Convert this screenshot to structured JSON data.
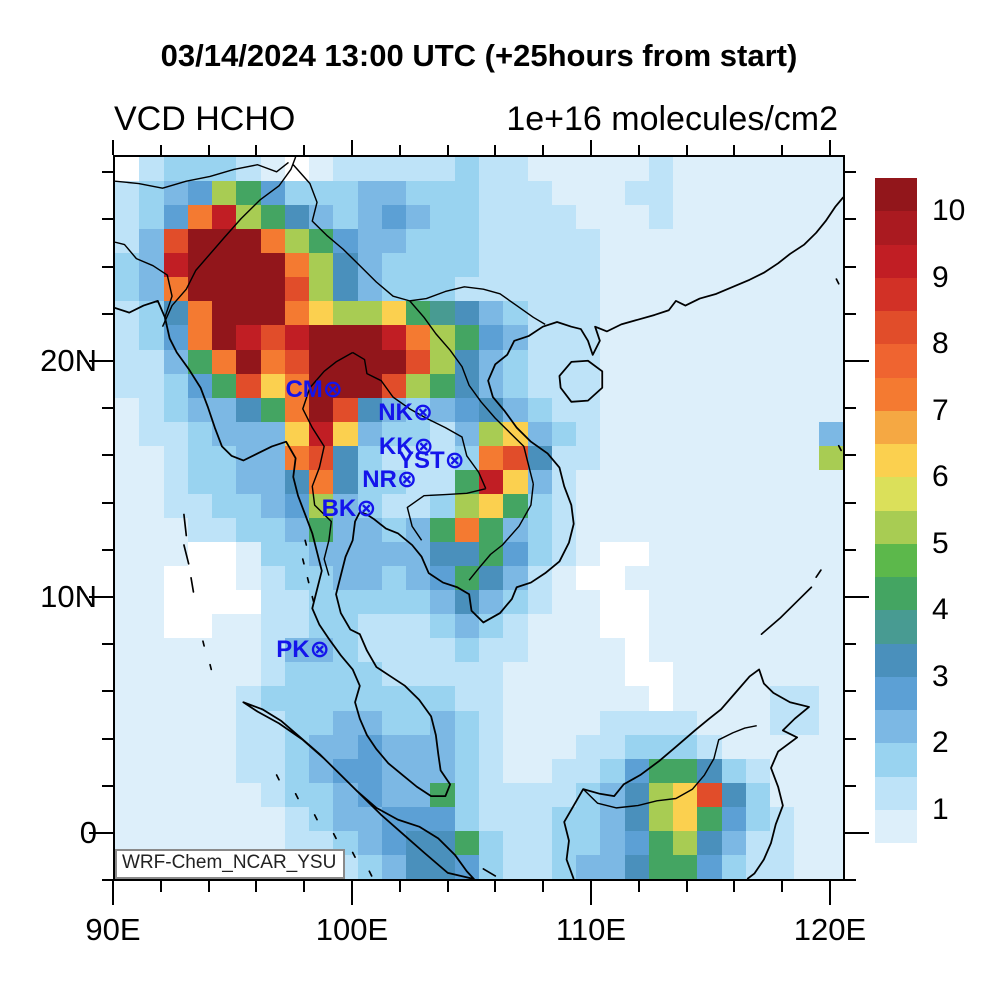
{
  "title": "03/14/2024 13:00 UTC (+25hours from start)",
  "plot": {
    "var_label": "VCD HCHO",
    "units_label": "1e+16 molecules/cm2",
    "watermark": "WRF-Chem_NCAR_YSU"
  },
  "axes": {
    "lon_min": 90,
    "lon_max": 120.63,
    "lat_min": -2.03,
    "lat_max": 28.73,
    "minor_step_deg": 2,
    "x_major": [
      {
        "lon": 90,
        "label": "90E"
      },
      {
        "lon": 100,
        "label": "100E"
      },
      {
        "lon": 110,
        "label": "110E"
      },
      {
        "lon": 120,
        "label": "120E"
      }
    ],
    "y_major": [
      {
        "lat": 20,
        "label": "20N"
      },
      {
        "lat": 10,
        "label": "10N"
      },
      {
        "lat": 0,
        "label": "0"
      }
    ]
  },
  "stations": [
    {
      "label": "CM",
      "marker": "⊗",
      "lon": 98.95,
      "lat": 18.85
    },
    {
      "label": "NK",
      "marker": "⊗",
      "lon": 102.72,
      "lat": 17.9
    },
    {
      "label": "KK",
      "marker": "⊗",
      "lon": 102.75,
      "lat": 16.43
    },
    {
      "label": "YST",
      "marker": "⊗",
      "lon": 104.05,
      "lat": 15.85
    },
    {
      "label": "NR",
      "marker": "⊗",
      "lon": 102.05,
      "lat": 15.05
    },
    {
      "label": "BK",
      "marker": "⊗",
      "lon": 100.35,
      "lat": 13.8
    },
    {
      "label": "PK",
      "marker": "⊗",
      "lon": 98.4,
      "lat": 7.85
    }
  ],
  "colorbar": {
    "tick_labels": [
      "10",
      "9",
      "8",
      "7",
      "6",
      "5",
      "4",
      "3",
      "2",
      "1"
    ],
    "tick_values": [
      10,
      9,
      8,
      7,
      6,
      5,
      4,
      3,
      2,
      1
    ],
    "vmin": 0.5,
    "vmax": 10.5
  },
  "chart_data": {
    "type": "heatmap",
    "title": "03/14/2024 13:00 UTC (+25hours from start)",
    "variable": "VCD HCHO",
    "units": "1e+16 molecules/cm2",
    "model_label": "WRF-Chem_NCAR_YSU",
    "lon_range": [
      90,
      120.63
    ],
    "lat_range": [
      -2.03,
      28.73
    ],
    "level_min": 0.5,
    "level_max": 10.5,
    "level_step": 0.5,
    "below_min_color": "#FFFFFF",
    "palette": [
      "#FFFFFF",
      "#DDEFFA",
      "#BEE3F8",
      "#99D3F0",
      "#7CB8E4",
      "#5CA0D5",
      "#4A90BC",
      "#489B92",
      "#44A562",
      "#5CB84B",
      "#A8CC53",
      "#DBE05A",
      "#FBD04F",
      "#F5A843",
      "#F47A31",
      "#EF6430",
      "#E14D2A",
      "#D23126",
      "#C11E24",
      "#AA1A20",
      "#92161B"
    ],
    "encoding": "0123456789abcdefghijk",
    "grid_note": "30x30 cells, rows north-to-south, cols west-to-east; char = palette/level index (0 = below 0.5, k = 10.0-10.5)",
    "grid_rows_north_to_south": [
      "023332101222223221111121111111",
      "2345a8533344333222111221111111",
      "235eia864345433222211121111111",
      "24gkkkea8544333222221111111111",
      "34ikkkkea643333222221111111111",
      "34ekkkkga643332222221111111111",
      "236ekkkecaac876432221111111111",
      "235ekigikkkiea8542221111111111",
      "2248ekegkkkkga6432221111111111",
      "22358gcekkkga86432221111111111",
      "1234468ekg64345643221111111111",
      "1223444cic43324ac4321111111114",
      "1123344eg632223eg622111111111a",
      "11233446e633228ic4211111111111",
      "11223345a43223ac83211111111111",
      "11122334844348e843211111111111",
      "111001334444466853210011111111",
      "110001233443458642100111111111",
      "110000223333346432110011111111",
      "110011223322234321110011111111",
      "111111244322223221111011111111",
      "111111233332222211111001111111",
      "111112333333332211111101111221",
      "111112233443343211112222111221",
      "111112234454443211122333211111",
      "111112234554443211223588632111",
      "1111112334544832222346acg63111",
      "1111111234455532223346ac853211",
      "11111112234566832233458a642211",
      "111111112234665322344688532211"
    ]
  }
}
